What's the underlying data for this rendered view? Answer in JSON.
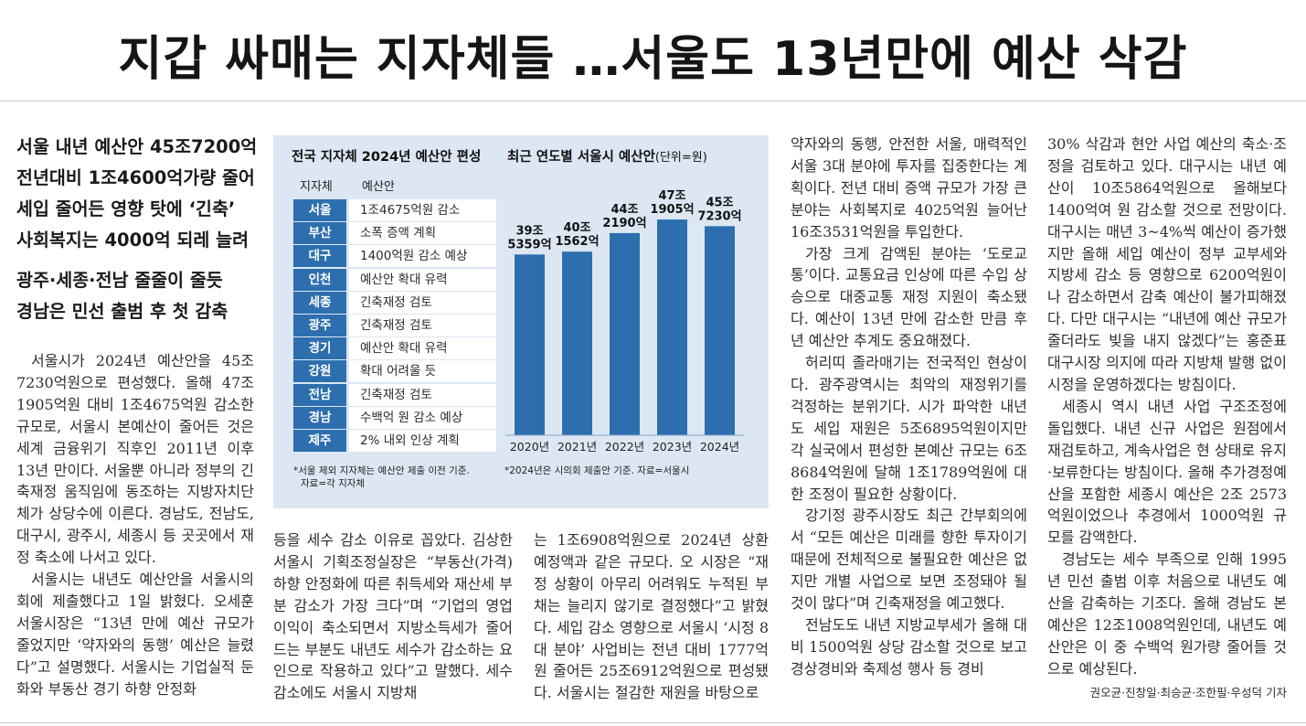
{
  "headline": "지갑 싸매는 지자체들 …서울도 13년만에 예산 삭감",
  "subheads": [
    "서울 내년 예산안 45조7200억",
    "전년대비 1조4600억가량 줄어",
    "세입 줄어든 영향 탓에 ‘긴축’",
    "사회복지는 4000억 되레 늘려",
    "광주·세종·전남 줄줄이 줄듯",
    "경남은 민선 출범 후 첫 감축"
  ],
  "graphic": {
    "table_title": "전국 지자체 2024년 예산안 편성",
    "chart_title": "최근 연도별 서울시 예산안",
    "chart_unit": "(단위=원)",
    "col_region": "지자체",
    "col_budget": "예산안",
    "rows": [
      {
        "region": "서울",
        "budget": "1조4675억원 감소"
      },
      {
        "region": "부산",
        "budget": "소폭 증액 계획"
      },
      {
        "region": "대구",
        "budget": "1400억원 감소 예상"
      },
      {
        "region": "인천",
        "budget": "예산안 확대 유력"
      },
      {
        "region": "세종",
        "budget": "긴축재정 검토"
      },
      {
        "region": "광주",
        "budget": "긴축재정 검토"
      },
      {
        "region": "경기",
        "budget": "예산안 확대 유력"
      },
      {
        "region": "강원",
        "budget": "확대 어려울 듯"
      },
      {
        "region": "전남",
        "budget": "긴축재정 검토"
      },
      {
        "region": "경남",
        "budget": "수백억 원 감소 예상"
      },
      {
        "region": "제주",
        "budget": "2% 내외 인상 계획"
      }
    ],
    "note_left": [
      "*서울 제외 지자체는 예산안 제출 이전 기준.",
      "자료=각 지자체"
    ],
    "note_right": "*2024년은 시의회 제출안 기준. 자료=서울시",
    "bar_color": "#2d6fae"
  },
  "chart_data": {
    "type": "bar",
    "title": "최근 연도별 서울시 예산안",
    "subtitle": "(단위=원)",
    "categories": [
      "2020년",
      "2021년",
      "2022년",
      "2023년",
      "2024년"
    ],
    "values": [
      39.5359,
      40.1562,
      44.219,
      47.1905,
      45.723
    ],
    "value_unit": "조원",
    "data_labels": [
      [
        "39조",
        "5359억"
      ],
      [
        "40조",
        "1562억"
      ],
      [
        "44조",
        "2190억"
      ],
      [
        "47조",
        "1905억"
      ],
      [
        "45조",
        "7230억"
      ]
    ],
    "ylim": [
      0,
      48
    ],
    "grid": false,
    "legend": "none",
    "note": "*2024년은 시의회 제출안 기준. 자료=서울시"
  },
  "col1": {
    "paragraphs": [
      "서울시가 2024년 예산안을 45조 7230억원으로 편성했다. 올해 47조 1905억원 대비 1조4675억원 감소한 규모로, 서울시 본예산이 줄어든 것은 세계 금융위기 직후인 2011년 이후 13년 만이다. 서울뿐 아니라 정부의 긴축재정 움직임에 동조하는 지방자치단체가 상당수에 이른다. 경남도, 전남도, 대구시, 광주시, 세종시 등 곳곳에서 재정 축소에 나서고 있다.",
      "서울시는 내년도 예산안을 서울시의회에 제출했다고 1일 밝혔다. 오세훈 서울시장은 “13년 만에 예산 규모가 줄었지만 ‘약자와의 동행’ 예산은 늘렸다”고 설명했다. 서울시는 기업실적 둔화와 부동산 경기 하향 안정화"
    ]
  },
  "col2": {
    "paragraphs": [
      "등을 세수 감소 이유로 꼽았다. 김상한 서울시 기획조정실장은 “부동산(가격) 하향 안정화에 따른 취득세와 재산세 부분 감소가 가장 크다”며 “기업의 영업이익이 축소되면서 지방소득세가 줄어드는 부분도 내년도 세수가 감소하는 요인으로 작용하고 있다”고 말했다. 세수 감소에도 서울시 지방채"
    ]
  },
  "col3": {
    "paragraphs": [
      "는 1조6908억원으로 2024년 상환 예정액과 같은 규모다. 오 시장은 “재정 상황이 아무리 어려워도 누적된 부채는 늘리지 않기로 결정했다”고 밝혔다. 세입 감소 영향으로 서울시 ‘시정 8대 분야’ 사업비는 전년 대비 1777억원 줄어든 25조6912억원으로 편성됐다. 서울시는 절감한 재원을 바탕으로"
    ]
  },
  "col4": {
    "paragraphs": [
      "약자와의 동행, 안전한 서울, 매력적인 서울 3대 분야에 투자를 집중한다는 계획이다. 전년 대비 증액 규모가 가장 큰 분야는 사회복지로 4025억원 늘어난 16조3531억원을 투입한다.",
      "가장 크게 감액된 분야는 ‘도로교통’이다. 교통요금 인상에 따른 수입 상승으로 대중교통 재정 지원이 축소됐다. 예산이 13년 만에 감소한 만큼 후년 예산안 추계도 중요해졌다.",
      "허리띠 졸라매기는 전국적인 현상이다. 광주광역시는 최악의 재정위기를 걱정하는 분위기다. 시가 파악한 내년도 세입 재원은 5조6895억원이지만 각 실국에서 편성한 본예산 규모는 6조8684억원에 달해 1조1789억원에 대한 조정이 필요한 상황이다.",
      "강기정 광주시장도 최근 간부회의에서 “모든 예산은 미래를 향한 투자이기 때문에 전체적으로 불필요한 예산은 없지만 개별 사업으로 보면 조정돼야 될 것이 많다”며 긴축재정을 예고했다.",
      "전남도도 내년 지방교부세가 올해 대비 1500억원 상당 감소할 것으로 보고 경상경비와 축제성 행사 등 경비"
    ]
  },
  "col5": {
    "paragraphs": [
      "30% 삭감과 현안 사업 예산의 축소·조정을 검토하고 있다. 대구시는 내년 예산이 10조5864억원으로 올해보다 1400억여 원 감소할 것으로 전망이다. 대구시는 매년 3~4%씩 예산이 증가했지만 올해 세입 예산이 정부 교부세와 지방세 감소 등 영향으로 6200억원이나 감소하면서 감축 예산이 불가피해졌다. 다만 대구시는 “내년에 예산 규모가 줄더라도 빚을 내지 않겠다”는 홍준표 대구시장 의지에 따라 지방채 발행 없이 시정을 운영하겠다는 방침이다.",
      "세종시 역시 내년 사업 구조조정에 돌입했다. 내년 신규 사업은 원점에서 재검토하고, 계속사업은 현 상태로 유지·보류한다는 방침이다. 올해 추가경정예산을 포함한 세종시 예산은 2조 2573억원이었으나 추경에서 1000억원 규모를 감액한다.",
      "경남도는 세수 부족으로 인해 1995년 민선 출범 이후 처음으로 내년도 예산을 감축하는 기조다. 올해 경남도 본예산은 12조1008억원인데, 내년도 예산안은 이 중 수백억 원가량 줄어들 것으로 예상된다."
    ],
    "byline": "권오균·진창일·최승균·조한필·우성덕 기자"
  }
}
